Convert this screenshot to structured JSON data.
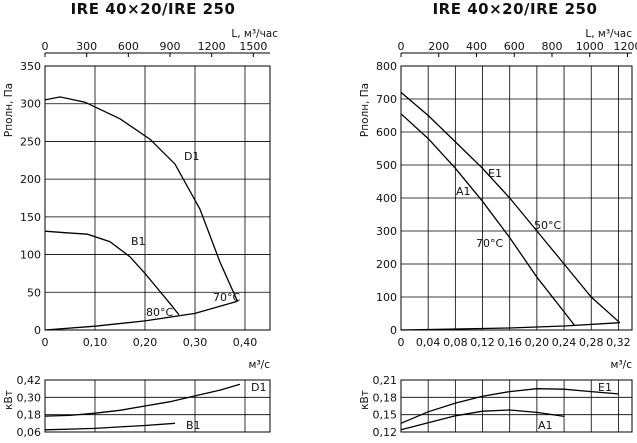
{
  "charts": [
    {
      "title": "IRE 40×20/IRE 250",
      "main": {
        "type": "line",
        "y_label": "Pполн, Па",
        "x_label": "м³/с",
        "x2_label": "L, м³/час",
        "x_ticks": [
          "0",
          "0,10",
          "0,20",
          "0,30",
          "0,40"
        ],
        "x2_ticks": [
          "0",
          "300",
          "600",
          "900",
          "1200",
          "1500"
        ],
        "y_ticks": [
          "0",
          "50",
          "100",
          "150",
          "200",
          "250",
          "300",
          "350"
        ],
        "xlim": [
          0,
          0.45
        ],
        "ylim": [
          0,
          350
        ],
        "x2_per_x": 3600,
        "labels": {
          "D1": "D1",
          "B1": "B1",
          "t80": "80°C",
          "t70": "70°C"
        },
        "series": [
          {
            "name": "D1",
            "x": [
              0,
              0.03,
              0.08,
              0.15,
              0.21,
              0.26,
              0.31,
              0.35,
              0.385
            ],
            "y": [
              305,
              309,
              302,
              280,
              253,
              220,
              160,
              90,
              38
            ]
          },
          {
            "name": "B1",
            "x": [
              0,
              0.04,
              0.085,
              0.13,
              0.17,
              0.2,
              0.225,
              0.25,
              0.268
            ],
            "y": [
              131,
              129,
              127,
              117,
              97,
              75,
              55,
              35,
              20
            ]
          },
          {
            "x": [
              0,
              0.1,
              0.2,
              0.3,
              0.385
            ],
            "y": [
              0,
              5,
              12,
              22,
              38
            ]
          }
        ]
      },
      "power": {
        "y_label": "кВт",
        "y_ticks": [
          "0,06",
          "0,18",
          "0,30",
          "0,42"
        ],
        "ylim": [
          0.06,
          0.42
        ],
        "labels": {
          "D1": "D1",
          "B1": "B1"
        },
        "series": [
          {
            "name": "D1",
            "x": [
              0,
              0.05,
              0.1,
              0.15,
              0.2,
              0.25,
              0.3,
              0.35,
              0.39
            ],
            "y": [
              0.17,
              0.175,
              0.19,
              0.21,
              0.24,
              0.27,
              0.31,
              0.35,
              0.39
            ]
          },
          {
            "name": "B1",
            "x": [
              0,
              0.05,
              0.1,
              0.15,
              0.2,
              0.26
            ],
            "y": [
              0.075,
              0.08,
              0.085,
              0.095,
              0.105,
              0.12
            ]
          }
        ]
      }
    },
    {
      "title": "IRE 40×20/IRE 250",
      "main": {
        "type": "line",
        "y_label": "Pполн, Па",
        "x_label": "м³/с",
        "x2_label": "L, м³/час",
        "x_ticks": [
          "0",
          "0,04",
          "0,08",
          "0,12",
          "0,16",
          "0,20",
          "0,24",
          "0,28",
          "0,32"
        ],
        "x2_ticks": [
          "0",
          "200",
          "400",
          "600",
          "800",
          "1000",
          "1200"
        ],
        "y_ticks": [
          "0",
          "100",
          "200",
          "300",
          "400",
          "500",
          "600",
          "700",
          "800"
        ],
        "xlim": [
          0,
          0.34
        ],
        "ylim": [
          0,
          800
        ],
        "x2_per_x": 3600,
        "labels": {
          "E1": "E1",
          "A1": "A1",
          "t50": "50°C",
          "t70": "70°C"
        },
        "series": [
          {
            "name": "E1",
            "x": [
              0,
              0.04,
              0.08,
              0.12,
              0.16,
              0.2,
              0.24,
              0.28,
              0.322
            ],
            "y": [
              720,
              650,
              570,
              490,
              400,
              300,
              200,
              100,
              22
            ]
          },
          {
            "name": "A1",
            "x": [
              0,
              0.04,
              0.08,
              0.12,
              0.16,
              0.2,
              0.24,
              0.255
            ],
            "y": [
              655,
              580,
              490,
              390,
              280,
              160,
              55,
              15
            ]
          },
          {
            "x": [
              0,
              0.08,
              0.16,
              0.24,
              0.322
            ],
            "y": [
              0,
              3,
              6,
              12,
              22
            ]
          }
        ]
      },
      "power": {
        "y_label": "кВт",
        "y_ticks": [
          "0,12",
          "0,15",
          "0,18",
          "0,21"
        ],
        "ylim": [
          0.12,
          0.21
        ],
        "labels": {
          "E1": "E1",
          "A1": "A1"
        },
        "series": [
          {
            "name": "E1",
            "x": [
              0,
              0.04,
              0.08,
              0.12,
              0.16,
              0.2,
              0.24,
              0.28,
              0.32
            ],
            "y": [
              0.135,
              0.155,
              0.17,
              0.182,
              0.19,
              0.195,
              0.194,
              0.19,
              0.186
            ]
          },
          {
            "name": "A1",
            "x": [
              0,
              0.04,
              0.08,
              0.12,
              0.16,
              0.2,
              0.24
            ],
            "y": [
              0.124,
              0.136,
              0.148,
              0.156,
              0.158,
              0.154,
              0.147
            ]
          }
        ]
      }
    }
  ],
  "chart_data": [
    {
      "type": "line",
      "title": "IRE 40×20/IRE 250",
      "xlabel": "м³/с",
      "ylabel": "Pполн, Па",
      "xlim": [
        0,
        0.45
      ],
      "ylim": [
        0,
        350
      ],
      "series": [
        {
          "name": "D1",
          "x": [
            0,
            0.03,
            0.08,
            0.15,
            0.21,
            0.26,
            0.31,
            0.35,
            0.385
          ],
          "y": [
            305,
            309,
            302,
            280,
            253,
            220,
            160,
            90,
            38
          ]
        },
        {
          "name": "B1",
          "x": [
            0,
            0.04,
            0.085,
            0.13,
            0.17,
            0.2,
            0.225,
            0.25,
            0.268
          ],
          "y": [
            131,
            129,
            127,
            117,
            97,
            75,
            55,
            35,
            20
          ]
        }
      ]
    },
    {
      "type": "line",
      "ylabel": "кВт",
      "xlabel": "м³/с",
      "xlim": [
        0,
        0.45
      ],
      "ylim": [
        0.06,
        0.42
      ],
      "series": [
        {
          "name": "D1",
          "x": [
            0,
            0.1,
            0.2,
            0.3,
            0.39
          ],
          "y": [
            0.17,
            0.19,
            0.24,
            0.31,
            0.39
          ]
        },
        {
          "name": "B1",
          "x": [
            0,
            0.1,
            0.2,
            0.26
          ],
          "y": [
            0.075,
            0.085,
            0.105,
            0.12
          ]
        }
      ]
    },
    {
      "type": "line",
      "title": "IRE 40×20/IRE 250",
      "xlabel": "м³/с",
      "ylabel": "Pполн, Па",
      "xlim": [
        0,
        0.34
      ],
      "ylim": [
        0,
        800
      ],
      "series": [
        {
          "name": "E1",
          "x": [
            0,
            0.04,
            0.08,
            0.12,
            0.16,
            0.2,
            0.24,
            0.28,
            0.322
          ],
          "y": [
            720,
            650,
            570,
            490,
            400,
            300,
            200,
            100,
            22
          ]
        },
        {
          "name": "A1",
          "x": [
            0,
            0.04,
            0.08,
            0.12,
            0.16,
            0.2,
            0.24,
            0.255
          ],
          "y": [
            655,
            580,
            490,
            390,
            280,
            160,
            55,
            15
          ]
        }
      ]
    },
    {
      "type": "line",
      "ylabel": "кВт",
      "xlabel": "м³/с",
      "xlim": [
        0,
        0.34
      ],
      "ylim": [
        0.12,
        0.21
      ],
      "series": [
        {
          "name": "E1",
          "x": [
            0,
            0.08,
            0.16,
            0.24,
            0.32
          ],
          "y": [
            0.135,
            0.17,
            0.19,
            0.194,
            0.186
          ]
        },
        {
          "name": "A1",
          "x": [
            0,
            0.08,
            0.16,
            0.24
          ],
          "y": [
            0.124,
            0.148,
            0.158,
            0.147
          ]
        }
      ]
    }
  ]
}
